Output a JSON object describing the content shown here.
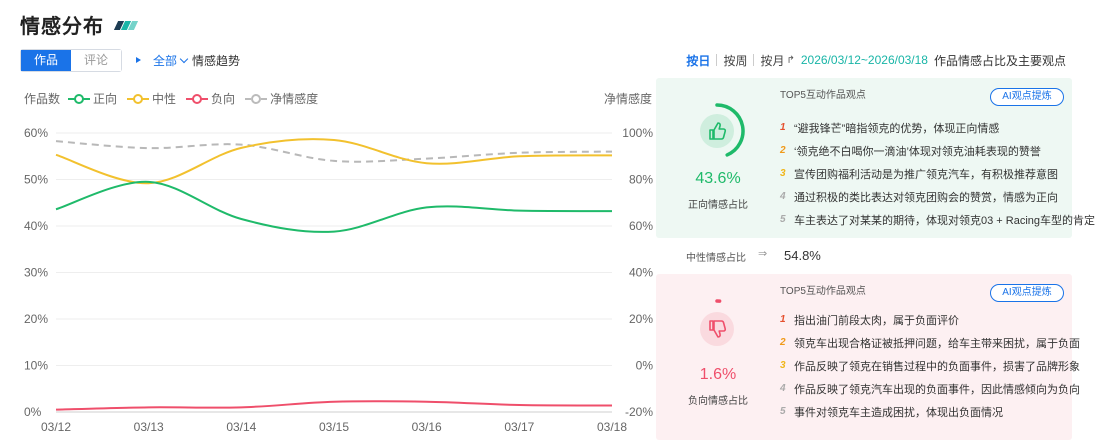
{
  "header": {
    "title": "情感分布"
  },
  "colors": {
    "primary": "#1a73e8",
    "teal": "#19b5a7",
    "positive": "#1fba6a",
    "neutral": "#f2c12e",
    "negative": "#ef4f6b",
    "net": "#b8b8b8",
    "dark": "#1d3c53"
  },
  "toolbar": {
    "tabs": [
      {
        "label": "作品",
        "active": true
      },
      {
        "label": "评论",
        "active": false
      }
    ],
    "filter_label": "全部",
    "trend_label": "情感趋势",
    "periods": [
      {
        "label": "按日",
        "active": true
      },
      {
        "label": "按周",
        "active": false
      },
      {
        "label": "按月",
        "active": false
      }
    ],
    "date_range": "2026/03/12~2026/03/18",
    "date_caption": "作品情感占比及主要观点"
  },
  "chart_data": {
    "type": "line",
    "left_axis_label": "作品数",
    "right_axis_label": "净情感度",
    "categories": [
      "03/12",
      "03/13",
      "03/14",
      "03/15",
      "03/16",
      "03/17",
      "03/18"
    ],
    "y_left": {
      "ticks": [
        "0%",
        "10%",
        "20%",
        "30%",
        "40%",
        "50%",
        "60%"
      ],
      "min": 0,
      "max": 60
    },
    "y_right": {
      "ticks": [
        "-20%",
        "0%",
        "20%",
        "40%",
        "60%",
        "80%",
        "100%"
      ],
      "min": -20,
      "max": 100
    },
    "series": [
      {
        "name": "正向",
        "axis": "left",
        "color": "#1fba6a",
        "style": "solid",
        "values": [
          43.6,
          49.5,
          41.5,
          38.8,
          44.0,
          43.3,
          43.2
        ]
      },
      {
        "name": "中性",
        "axis": "left",
        "color": "#f2c12e",
        "style": "solid",
        "values": [
          55.3,
          49.2,
          56.8,
          58.5,
          53.5,
          55.0,
          55.2
        ]
      },
      {
        "name": "负向",
        "axis": "left",
        "color": "#ef4f6b",
        "style": "solid",
        "values": [
          0.5,
          1.0,
          1.0,
          2.2,
          2.2,
          1.5,
          1.4
        ]
      },
      {
        "name": "净情感度",
        "axis": "right",
        "color": "#b8b8b8",
        "style": "dashed",
        "values": [
          96.5,
          93.5,
          95.0,
          88.0,
          89.0,
          91.5,
          92.0
        ]
      }
    ],
    "grid": true,
    "legend_position": "top-left"
  },
  "positive_panel": {
    "percent": "43.6%",
    "value": 43.6,
    "label": "正向情感占比",
    "top5_title": "TOP5互动作品观点",
    "ai_button": "AI观点提炼",
    "items": [
      "“避我锋芒”暗指领克的优势，体现正向情感",
      "‘领克绝不白喝你一滴油’体现对领克油耗表现的赞誉",
      "宣传团购福利活动是为推广领克汽车，有积极推荐意图",
      "通过积极的类比表达对领克团购会的赞赏，情感为正向",
      "车主表达了对某某的期待，体现对领克03 + Racing车型的肯定"
    ]
  },
  "neutral_row": {
    "label": "中性情感占比",
    "percent": "54.8%"
  },
  "negative_panel": {
    "percent": "1.6%",
    "value": 1.6,
    "label": "负向情感占比",
    "top5_title": "TOP5互动作品观点",
    "ai_button": "AI观点提炼",
    "items": [
      "指出油门前段太肉，属于负面评价",
      "领克车出现合格证被抵押问题，给车主带来困扰，属于负面",
      "作品反映了领克在销售过程中的负面事件，损害了品牌形象",
      "作品反映了领克汽车出现的负面事件，因此情感倾向为负向",
      "事件对领克车主造成困扰，体现出负面情况"
    ]
  }
}
